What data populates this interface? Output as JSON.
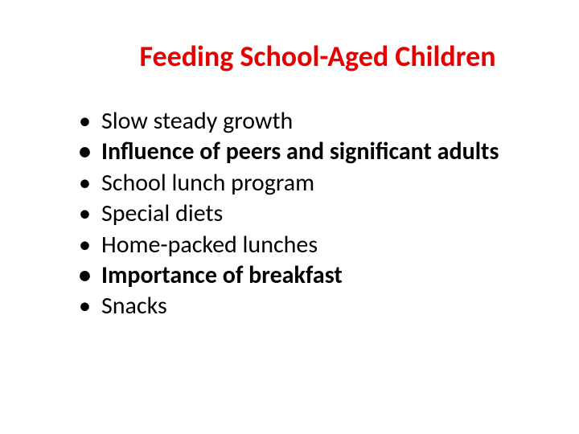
{
  "title": {
    "text": "Feeding School-Aged Children",
    "color": "#e60000",
    "fontsize": 36
  },
  "bullets": {
    "items": [
      {
        "text": "Slow steady growth",
        "bold": false
      },
      {
        "text": "Influence of peers and significant adults",
        "bold": true
      },
      {
        "text": "School lunch program",
        "bold": false
      },
      {
        "text": "Special diets",
        "bold": false
      },
      {
        "text": "Home-packed lunches",
        "bold": false
      },
      {
        "text": "Importance of breakfast",
        "bold": true
      },
      {
        "text": "Snacks",
        "bold": false
      }
    ],
    "color": "#000000",
    "fontsize": 30,
    "line_height": 1.28
  },
  "background_color": "#ffffff"
}
